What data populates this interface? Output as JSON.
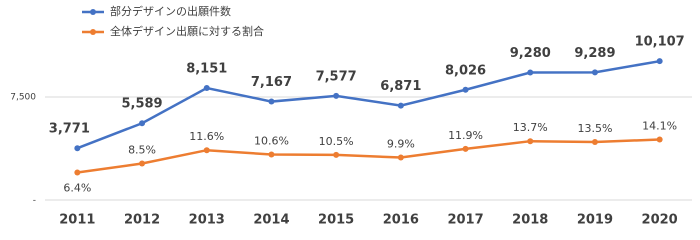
{
  "chart_data": {
    "type": "line",
    "categories": [
      "2011",
      "2012",
      "2013",
      "2014",
      "2015",
      "2016",
      "2017",
      "2018",
      "2019",
      "2020"
    ],
    "series": [
      {
        "name": "部分デザインの出願件数",
        "color": "#4472c4",
        "values": [
          3771,
          5589,
          8151,
          7167,
          7577,
          6871,
          8026,
          9280,
          9289,
          10107
        ],
        "value_labels": [
          "3,771",
          "5,589",
          "8,151",
          "7,167",
          "7,577",
          "6,871",
          "8,026",
          "9,280",
          "9,289",
          "10,107"
        ]
      },
      {
        "name": "全体デザイン出願に対する割合",
        "color": "#ed7d31",
        "axis": "y2",
        "values": [
          6.4,
          8.5,
          11.6,
          10.6,
          10.5,
          9.9,
          11.9,
          13.7,
          13.5,
          14.1
        ],
        "value_labels": [
          "6.4%",
          "8.5%",
          "11.6%",
          "10.6%",
          "10.5%",
          "9.9%",
          "11.9%",
          "13.7%",
          "13.5%",
          "14.1%"
        ]
      }
    ],
    "ylim": [
      0,
      12500
    ],
    "yticks": [
      {
        "value": 0,
        "label": "-"
      },
      {
        "value": 7500,
        "label": "7,500"
      }
    ],
    "y2lim": [
      0,
      40
    ],
    "grid": true,
    "legend": "top-left"
  }
}
